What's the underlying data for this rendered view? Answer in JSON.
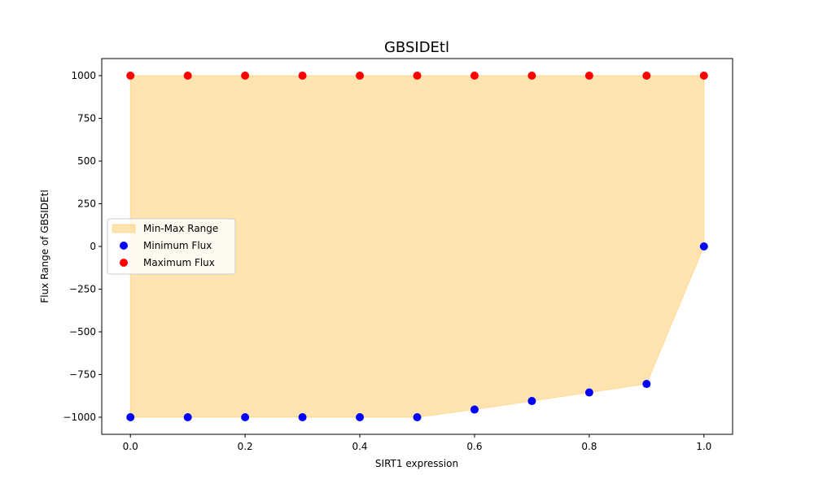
{
  "chart_data": {
    "type": "scatter",
    "title": "GBSIDEtl",
    "xlabel": "SIRT1 expression",
    "ylabel": "Flux Range of GBSIDEtl",
    "xlim": [
      -0.05,
      1.05
    ],
    "ylim": [
      -1100,
      1100
    ],
    "xticks": [
      0.0,
      0.2,
      0.4,
      0.6,
      0.8,
      1.0
    ],
    "xtick_labels": [
      "0.0",
      "0.2",
      "0.4",
      "0.6",
      "0.8",
      "1.0"
    ],
    "yticks": [
      -1000,
      -750,
      -500,
      -250,
      0,
      250,
      500,
      750,
      1000
    ],
    "ytick_labels": [
      "−1000",
      "−750",
      "−500",
      "−250",
      "0",
      "250",
      "500",
      "750",
      "1000"
    ],
    "x": [
      0.0,
      0.1,
      0.2,
      0.3,
      0.4,
      0.5,
      0.6,
      0.7,
      0.8,
      0.9,
      1.0
    ],
    "series": [
      {
        "name": "Minimum Flux",
        "color": "#0000ff",
        "values": [
          -1000,
          -1000,
          -1000,
          -1000,
          -1000,
          -1000,
          -955,
          -905,
          -855,
          -805,
          0
        ]
      },
      {
        "name": "Maximum Flux",
        "color": "#ff0000",
        "values": [
          1000,
          1000,
          1000,
          1000,
          1000,
          1000,
          1000,
          1000,
          1000,
          1000,
          1000
        ]
      }
    ],
    "fill": {
      "name": "Min-Max Range",
      "color": "#ffa500",
      "opacity": 0.3
    },
    "legend": {
      "placement": "center-left",
      "entries": [
        "Min-Max Range",
        "Minimum Flux",
        "Maximum Flux"
      ]
    },
    "grid": false
  }
}
